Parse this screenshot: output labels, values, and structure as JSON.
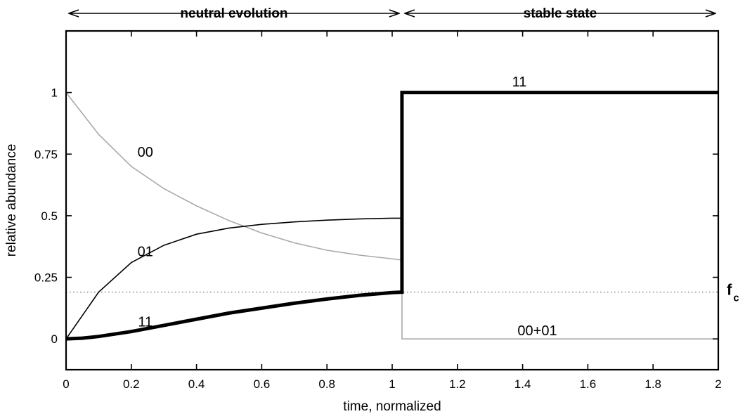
{
  "chart_data": {
    "type": "line",
    "xlabel": "time, normalized",
    "ylabel": "relative abundance",
    "xlim": [
      0,
      2
    ],
    "ylim": [
      -0.125,
      1.25
    ],
    "xticks": [
      0,
      0.2,
      0.4,
      0.6,
      0.8,
      1,
      1.2,
      1.4,
      1.6,
      1.8,
      2
    ],
    "xtick_labels": [
      "0",
      "0.2",
      "0.4",
      "0.6",
      "0.8",
      "1",
      "1.2",
      "1.4",
      "1.6",
      "1.8",
      "2"
    ],
    "yticks": [
      0,
      0.25,
      0.5,
      0.75,
      1
    ],
    "ytick_labels": [
      "0",
      "0.25",
      "0.5",
      "0.75",
      "1"
    ],
    "grid": false,
    "threshold": {
      "name": "f",
      "subscript": "c",
      "y": 0.19,
      "style": "dotted"
    },
    "phases": [
      {
        "label": "neutral evolution",
        "x_start": 0,
        "x_end": 1.03
      },
      {
        "label": "stable state",
        "x_start": 1.03,
        "x_end": 2
      }
    ],
    "series": [
      {
        "name": "00",
        "color": "#a9a9a9",
        "width": 1.6,
        "x": [
          0,
          0.1,
          0.2,
          0.3,
          0.4,
          0.5,
          0.6,
          0.7,
          0.8,
          0.9,
          1.0,
          1.03,
          1.03,
          2.0
        ],
        "y": [
          1.0,
          0.83,
          0.7,
          0.61,
          0.54,
          0.48,
          0.43,
          0.39,
          0.36,
          0.34,
          0.325,
          0.32,
          0.0,
          0.0
        ]
      },
      {
        "name": "01",
        "color": "#000000",
        "width": 1.6,
        "x": [
          0,
          0.1,
          0.2,
          0.3,
          0.4,
          0.5,
          0.6,
          0.7,
          0.8,
          0.9,
          1.0,
          1.03
        ],
        "y": [
          0.0,
          0.19,
          0.31,
          0.38,
          0.425,
          0.45,
          0.465,
          0.475,
          0.482,
          0.487,
          0.49,
          0.49
        ]
      },
      {
        "name": "11",
        "color": "#000000",
        "width": 5,
        "x": [
          0,
          0.05,
          0.1,
          0.2,
          0.3,
          0.4,
          0.5,
          0.6,
          0.7,
          0.8,
          0.9,
          1.0,
          1.03,
          1.03,
          2.0
        ],
        "y": [
          0.0,
          0.003,
          0.01,
          0.03,
          0.055,
          0.08,
          0.105,
          0.125,
          0.145,
          0.162,
          0.177,
          0.188,
          0.19,
          1.0,
          1.0
        ]
      }
    ],
    "annotations": [
      {
        "text": "00",
        "x": 0.243,
        "y": 0.76
      },
      {
        "text": "01",
        "x": 0.243,
        "y": 0.355
      },
      {
        "text": "11",
        "x": 0.243,
        "y": 0.07
      },
      {
        "text": "11",
        "x": 1.39,
        "y": 1.045
      },
      {
        "text": "00+01",
        "x": 1.445,
        "y": 0.035
      }
    ]
  }
}
